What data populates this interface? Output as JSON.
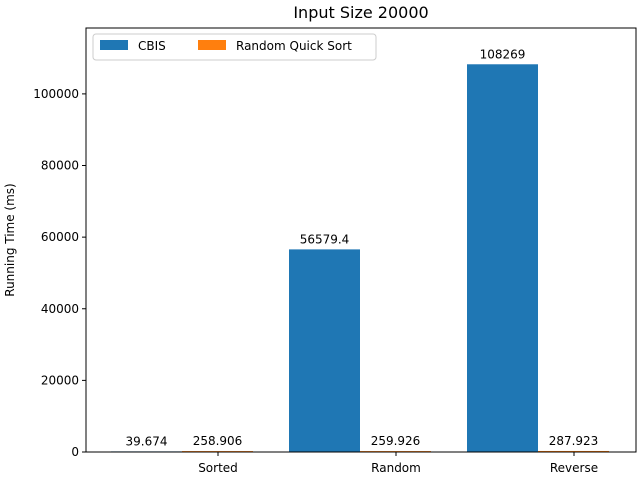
{
  "chart_data": {
    "type": "bar",
    "title": "Input Size 20000",
    "xlabel": "",
    "ylabel": "Running Time (ms)",
    "categories": [
      "Sorted",
      "Random",
      "Reverse"
    ],
    "series": [
      {
        "name": "CBIS",
        "values": [
          39.674,
          56579.4,
          108269
        ],
        "labels": [
          "39.674",
          "56579.4",
          "108269"
        ],
        "color": "#1f77b4"
      },
      {
        "name": "Random Quick Sort",
        "values": [
          258.906,
          259.926,
          287.923
        ],
        "labels": [
          "258.906",
          "259.926",
          "287.923"
        ],
        "color": "#ff7f0e"
      }
    ],
    "ylim": [
      0,
      118400
    ],
    "yticks": [
      0,
      20000,
      40000,
      60000,
      80000,
      100000
    ],
    "ytick_labels": [
      "0",
      "20000",
      "40000",
      "60000",
      "80000",
      "100000"
    ],
    "legend": "top-left",
    "grid": false
  }
}
